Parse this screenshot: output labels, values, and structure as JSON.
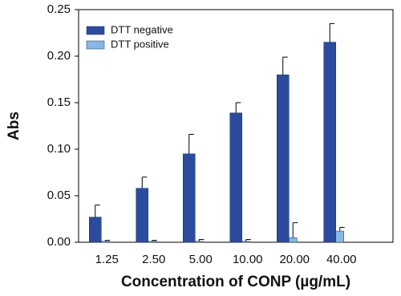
{
  "chart_data": {
    "type": "bar",
    "x_label": "Concentration of CONP (µg/mL)",
    "y_label": "Abs",
    "categories": [
      "1.25",
      "2.50",
      "5.00",
      "10.00",
      "20.00",
      "40.00"
    ],
    "series": [
      {
        "name": "DTT negative",
        "color": "#2b4c9e",
        "values": [
          0.027,
          0.058,
          0.095,
          0.139,
          0.18,
          0.215
        ],
        "errors": [
          0.013,
          0.012,
          0.021,
          0.011,
          0.019,
          0.02
        ]
      },
      {
        "name": "DTT positive",
        "color": "#86b8e3",
        "values": [
          0.001,
          0.001,
          0.001,
          0.001,
          0.005,
          0.012
        ],
        "errors": [
          0.001,
          0.001,
          0.002,
          0.002,
          0.016,
          0.004
        ]
      }
    ],
    "ylim": [
      0,
      0.25
    ],
    "yticks": [
      {
        "value": 0,
        "label": "0.00"
      },
      {
        "value": 0.05,
        "label": "0.05"
      },
      {
        "value": 0.1,
        "label": "0.10"
      },
      {
        "value": 0.15,
        "label": "0.15"
      },
      {
        "value": 0.2,
        "label": "0.20"
      },
      {
        "value": 0.25,
        "label": "0.25"
      }
    ],
    "legend": "upper-left"
  }
}
